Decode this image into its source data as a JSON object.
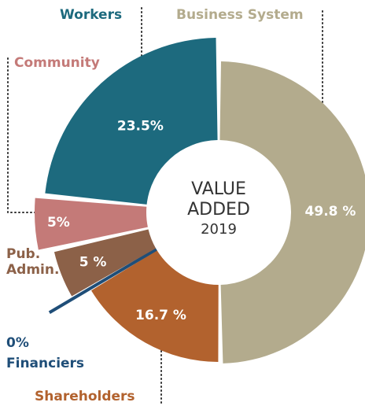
{
  "chart_data": {
    "type": "donut",
    "title": "VALUE ADDED",
    "subtitle": "2019",
    "series": [
      {
        "name": "Business System",
        "color": "#b3ab8d",
        "values": [
          49.8
        ],
        "value_labels": [
          "49.8 %"
        ]
      },
      {
        "name": "Shareholders",
        "color": "#b2622e",
        "values": [
          16.7
        ],
        "value_labels": [
          "16.7 %"
        ]
      },
      {
        "name": "Financiers",
        "color": "#1f4e78",
        "values": [
          0
        ],
        "value_labels": [
          "0%"
        ]
      },
      {
        "name": "Pub. Admin.",
        "color": "#8c6148",
        "values": [
          5
        ],
        "value_labels": [
          "5 %"
        ]
      },
      {
        "name": "Community",
        "color": "#c47a78",
        "values": [
          5
        ],
        "value_labels": [
          "5%"
        ]
      },
      {
        "name": "Workers",
        "color": "#1d6a7e",
        "values": [
          23.5
        ],
        "value_labels": [
          "23.5%"
        ]
      }
    ]
  }
}
